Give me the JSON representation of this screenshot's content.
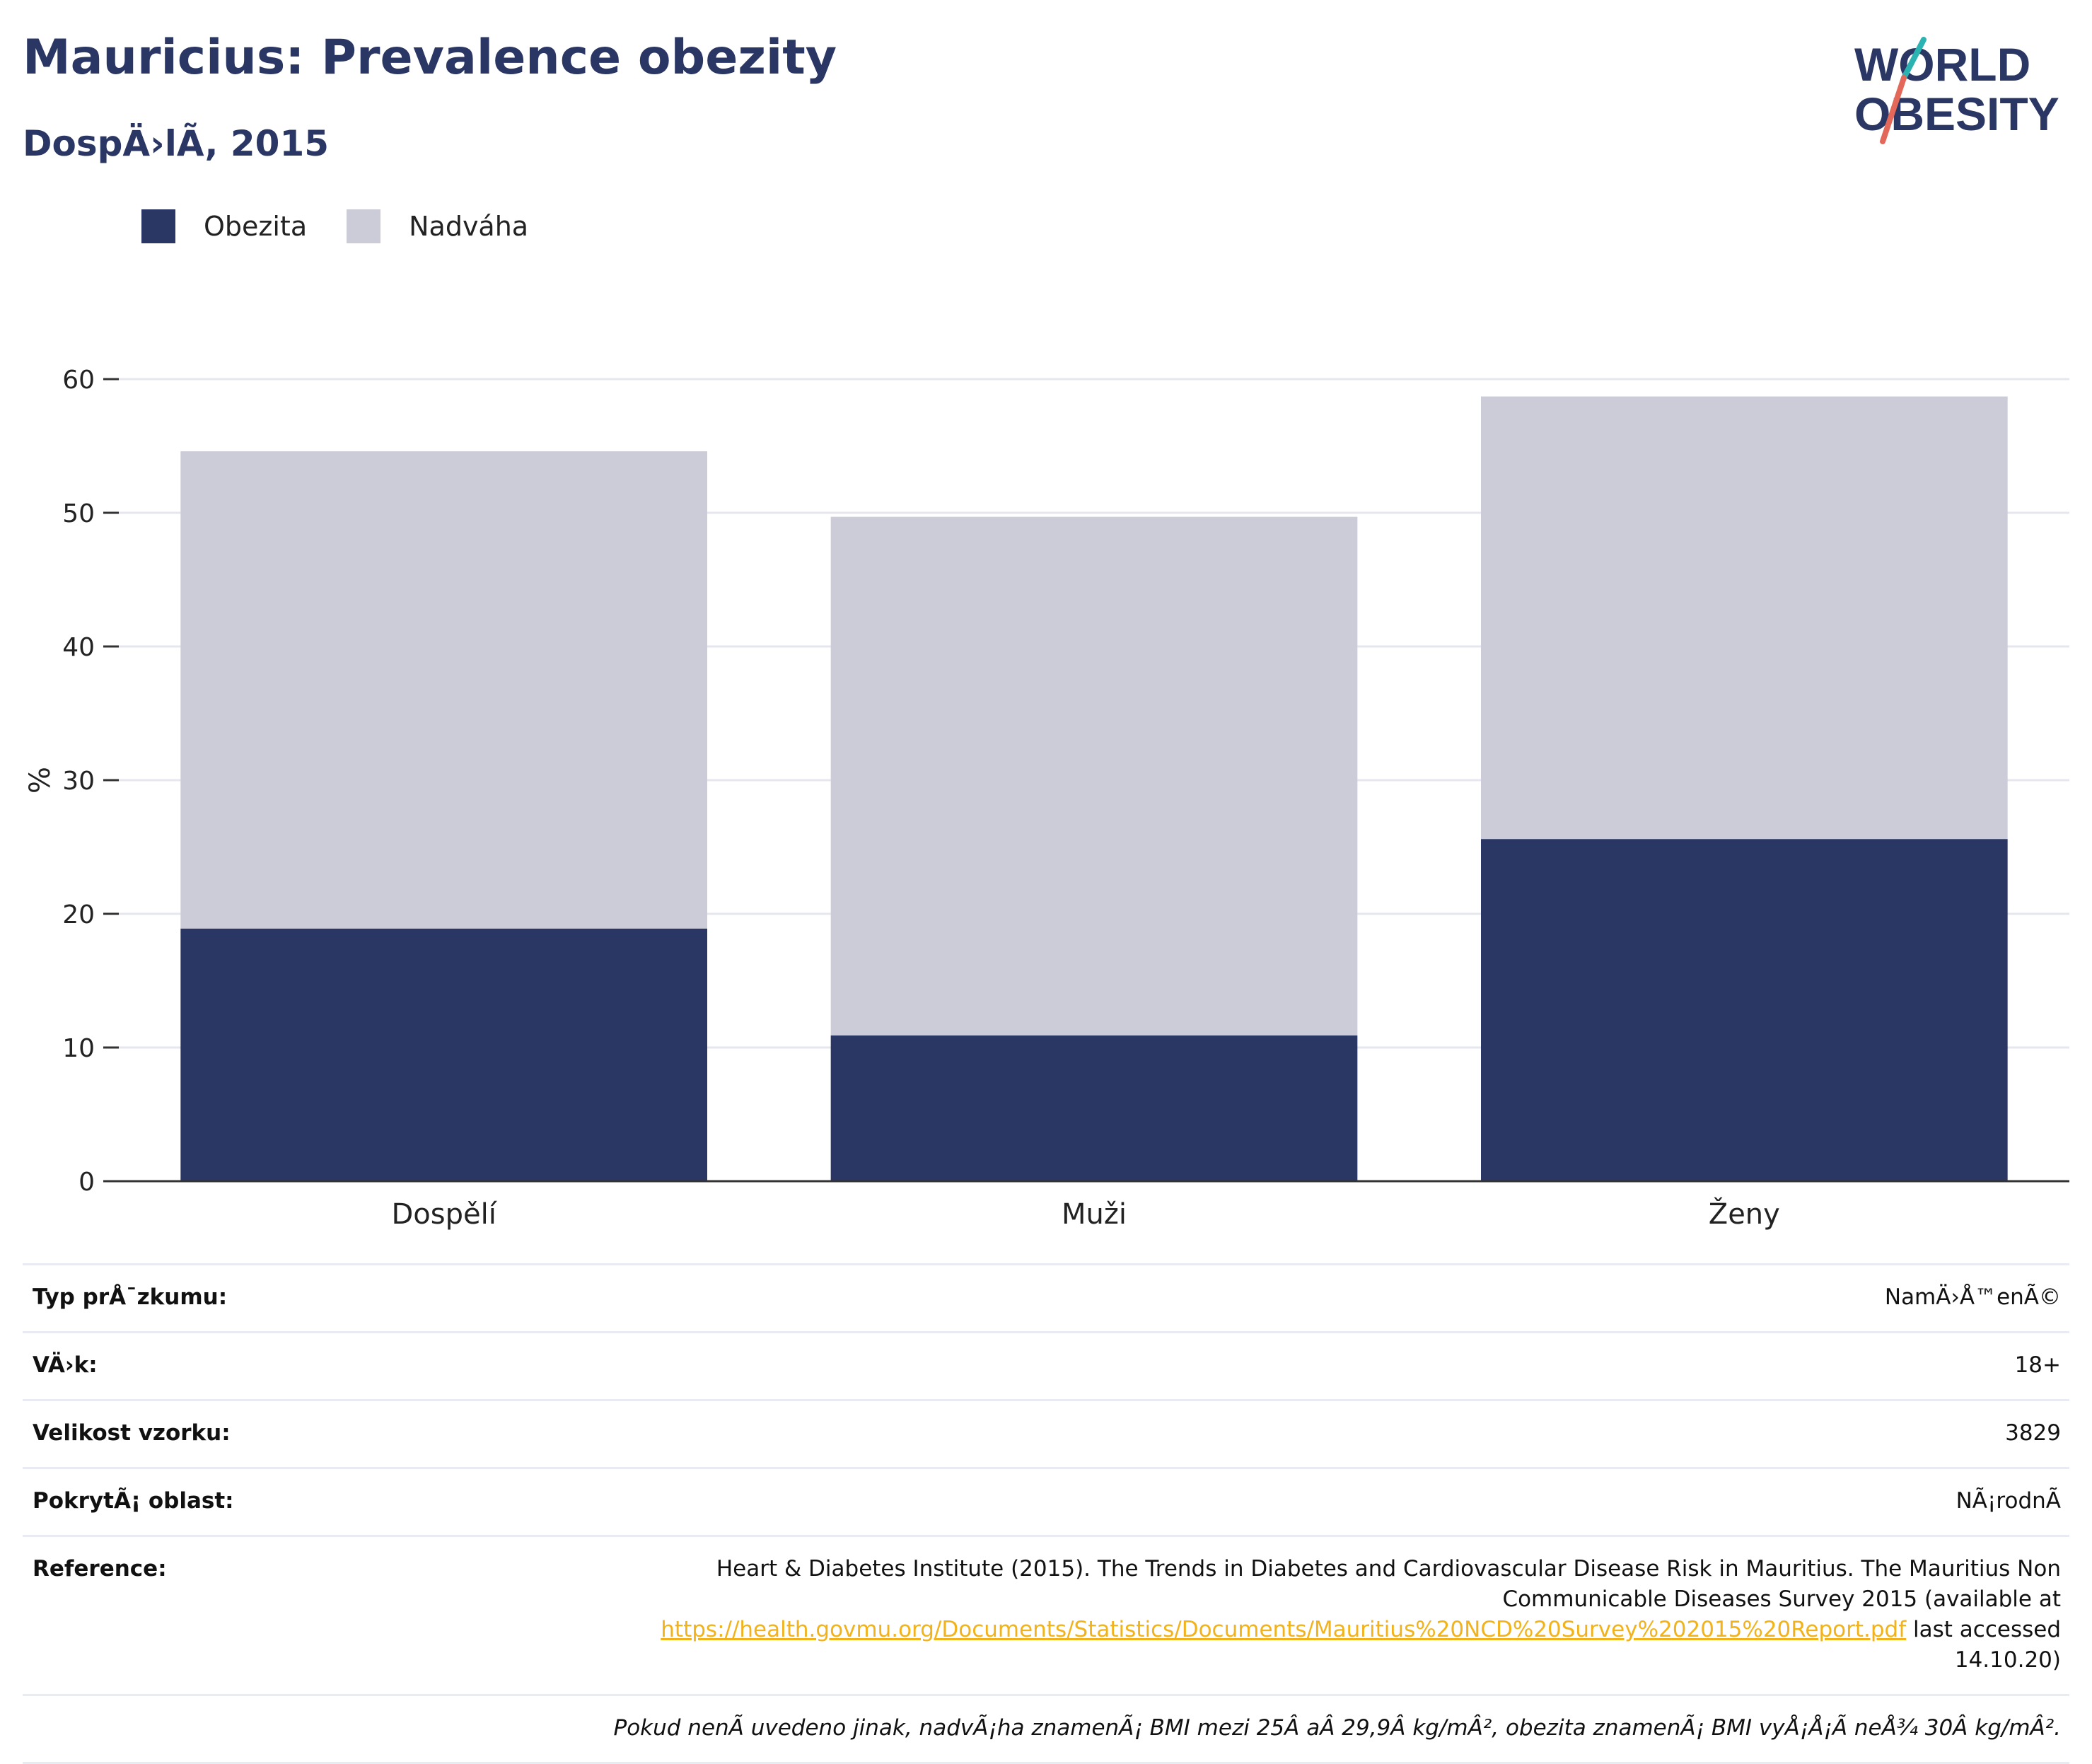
{
  "header": {
    "title": "Mauricius: Prevalence obezity",
    "subtitle": "DospÄ›lÃ­, 2015"
  },
  "logo": {
    "line1": "WORLD",
    "line2": "OBESITY",
    "accent_teal": "#2bb3b1",
    "accent_red": "#e3685a"
  },
  "colors": {
    "obesity": "#2a3663",
    "overweight": "#cbccd7",
    "grid": "#e6e7ee",
    "axis": "#333333"
  },
  "chart_data": {
    "type": "bar",
    "stacked": true,
    "categories": [
      "Dospělí",
      "Muži",
      "Ženy"
    ],
    "series": [
      {
        "name": "Obezita",
        "values": [
          18.9,
          10.9,
          25.6
        ],
        "color": "#2a3663"
      },
      {
        "name": "Nadváha",
        "values": [
          35.7,
          38.8,
          33.1
        ],
        "color": "#cbccd7"
      }
    ],
    "ylabel": "%",
    "xlabel": "",
    "ylim": [
      0,
      60
    ],
    "yticks": [
      0,
      10,
      20,
      30,
      40,
      50,
      60
    ],
    "grid": true,
    "legend": "top-left"
  },
  "info": {
    "rows": [
      {
        "label": "Typ prÅ¯zkumu:",
        "value": "NamÄ›Å™enÃ©"
      },
      {
        "label": "VÄ›k:",
        "value": "18+"
      },
      {
        "label": "Velikost vzorku:",
        "value": "3829"
      },
      {
        "label": "PokrytÃ¡ oblast:",
        "value": "NÃ¡rodnÃ­"
      }
    ],
    "reference": {
      "label": "Reference:",
      "text_before": "Heart & Diabetes Institute (2015). The Trends in Diabetes and Cardiovascular Disease Risk in Mauritius. The Mauritius Non Communicable Diseases Survey 2015 (available at",
      "link": "https://health.govmu.org/Documents/Statistics/Documents/Mauritius%20NCD%20Survey%202015%20Report.pdf",
      "text_after": "last accessed 14.10.20)"
    },
    "note": "Pokud nenÃ­ uvedeno jinak, nadvÃ¡ha znamenÃ¡ BMI mezi 25Â aÂ 29,9Â kg/mÂ², obezita znamenÃ¡ BMI vyÅ¡Å¡Ã­ neÅ¾ 30Â kg/mÂ²."
  }
}
